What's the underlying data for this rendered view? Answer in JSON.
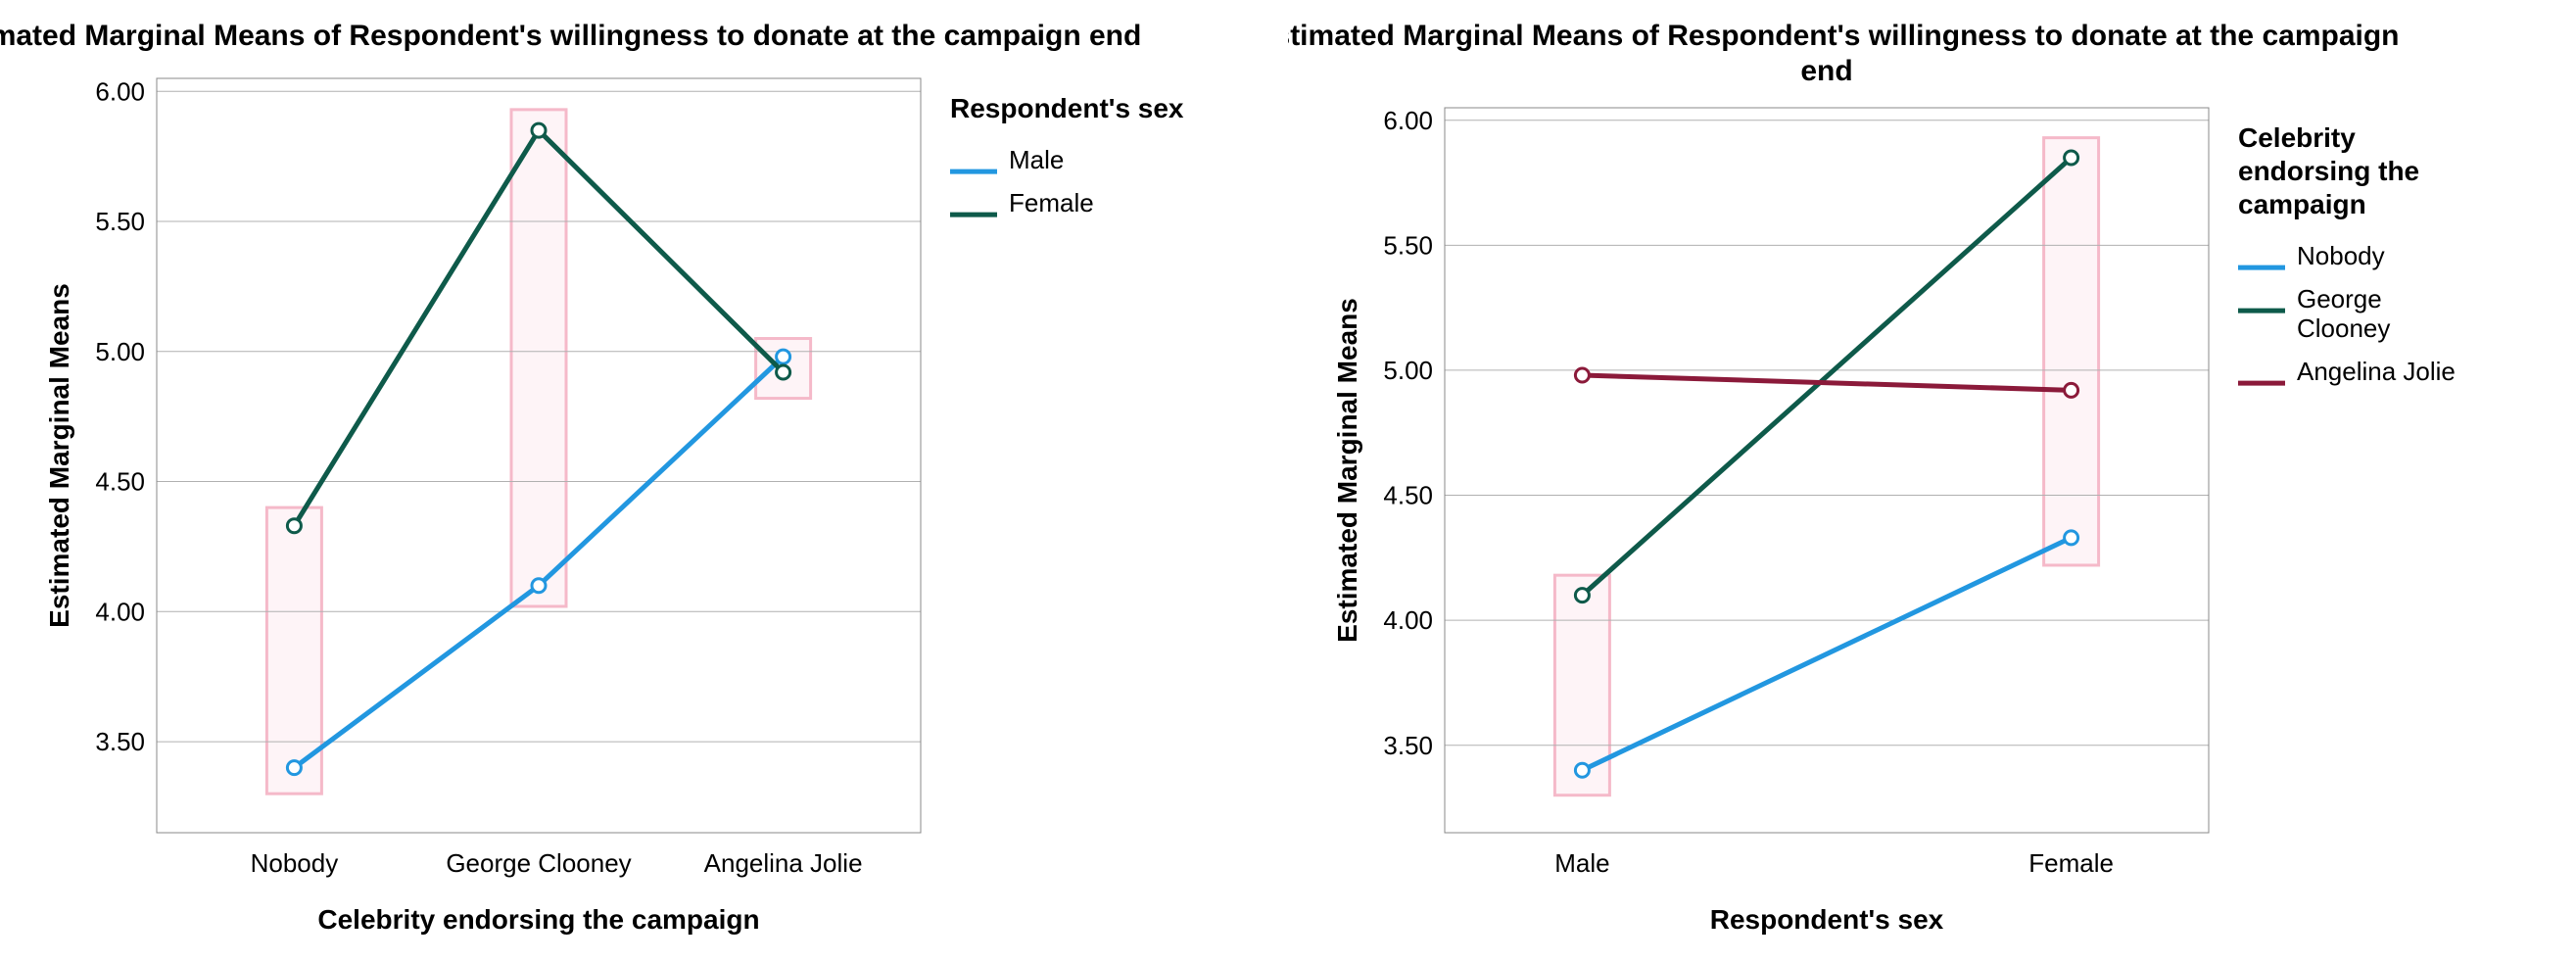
{
  "global": {
    "background_color": "#ffffff",
    "grid_color": "#b0b0b0",
    "axis_text_color": "#000000",
    "title_fontsize": 30,
    "axis_label_fontsize": 28,
    "tick_fontsize": 26,
    "legend_title_fontsize": 28,
    "legend_item_fontsize": 26,
    "line_width": 5,
    "marker_radius": 7,
    "marker_inner_radius": 4,
    "highlight_stroke": "#f5b9c9",
    "highlight_fill": "#fdeaf0",
    "highlight_stroke_width": 3
  },
  "chart_left": {
    "type": "line",
    "title": "Estimated Marginal Means of Respondent's willingness to donate at the campaign end",
    "xlabel": "Celebrity endorsing the campaign",
    "ylabel": "Estimated Marginal Means",
    "x_categories": [
      "Nobody",
      "George Clooney",
      "Angelina Jolie"
    ],
    "ylim": [
      3.15,
      6.05
    ],
    "yticks": [
      3.5,
      4.0,
      4.5,
      5.0,
      5.5,
      6.0
    ],
    "ytick_labels": [
      "3.50",
      "4.00",
      "4.50",
      "5.00",
      "5.50",
      "6.00"
    ],
    "legend": {
      "title": "Respondent's sex",
      "items": [
        "Male",
        "Female"
      ]
    },
    "series": [
      {
        "name": "Male",
        "color": "#2297e0",
        "values": [
          3.4,
          4.1,
          4.98
        ]
      },
      {
        "name": "Female",
        "color": "#0e5a4a",
        "values": [
          4.33,
          5.85,
          4.92
        ]
      }
    ],
    "highlights": [
      {
        "x_index": 0,
        "y_min": 3.3,
        "y_max": 4.4
      },
      {
        "x_index": 1,
        "y_min": 4.02,
        "y_max": 5.93
      },
      {
        "x_index": 2,
        "y_min": 4.82,
        "y_max": 5.05
      }
    ]
  },
  "chart_right": {
    "type": "line",
    "title": "Estimated Marginal Means of Respondent's willingness to donate at the campaign end",
    "xlabel": "Respondent's sex",
    "ylabel": "Estimated Marginal Means",
    "x_categories": [
      "Male",
      "Female"
    ],
    "ylim": [
      3.15,
      6.05
    ],
    "yticks": [
      3.5,
      4.0,
      4.5,
      5.0,
      5.5,
      6.0
    ],
    "ytick_labels": [
      "3.50",
      "4.00",
      "4.50",
      "5.00",
      "5.50",
      "6.00"
    ],
    "legend": {
      "title": "Celebrity endorsing the campaign",
      "items": [
        "Nobody",
        "George Clooney",
        "Angelina Jolie"
      ]
    },
    "series": [
      {
        "name": "Nobody",
        "color": "#2297e0",
        "values": [
          3.4,
          4.33
        ]
      },
      {
        "name": "George Clooney",
        "color": "#0e5a4a",
        "values": [
          4.1,
          5.85
        ]
      },
      {
        "name": "Angelina Jolie",
        "color": "#8b1a3a",
        "values": [
          4.98,
          4.92
        ]
      }
    ],
    "highlights": [
      {
        "x_index": 0,
        "y_min": 3.3,
        "y_max": 4.18
      },
      {
        "x_index": 1,
        "y_min": 4.22,
        "y_max": 5.93
      }
    ]
  }
}
